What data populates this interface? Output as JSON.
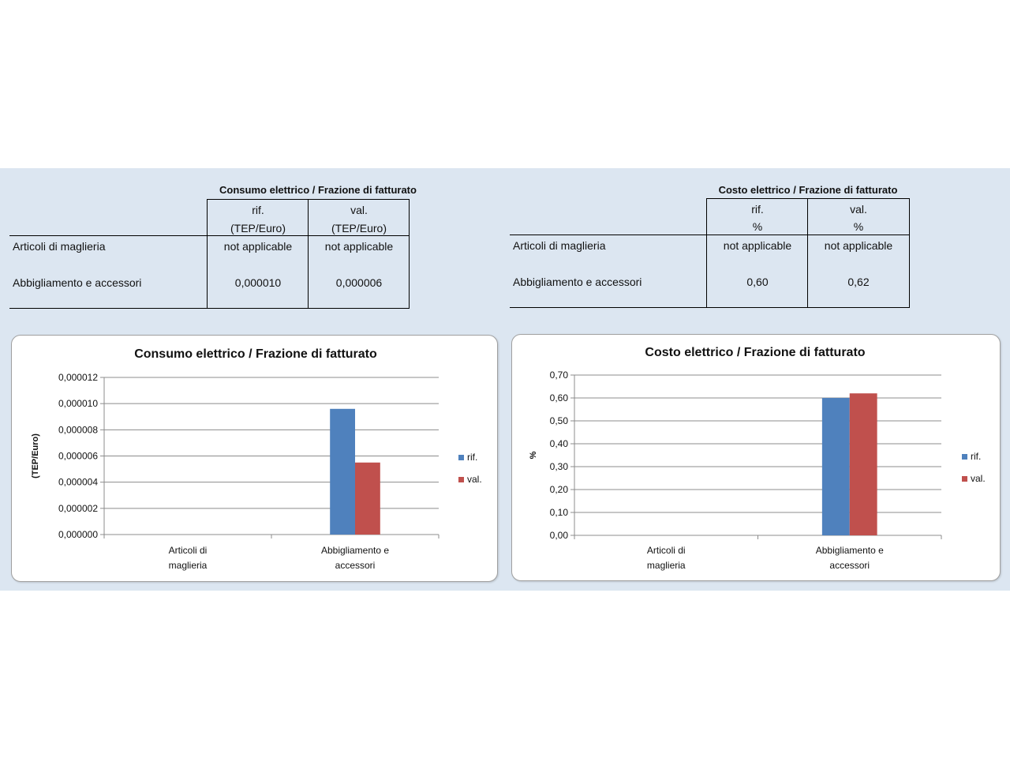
{
  "tables": [
    {
      "title": "Consumo elettrico / Frazione di fatturato",
      "col1_header": "rif.",
      "col1_unit": "(TEP/Euro)",
      "col2_header": "val.",
      "col2_unit": "(TEP/Euro)",
      "rows": [
        {
          "label": "Articoli di maglieria",
          "rif": "not applicable",
          "val": "not applicable"
        },
        {
          "label": "Abbigliamento e accessori",
          "rif": "0,000010",
          "val": "0,000006"
        }
      ]
    },
    {
      "title": "Costo elettrico / Frazione di fatturato",
      "col1_header": "rif.",
      "col1_unit": "%",
      "col2_header": "val.",
      "col2_unit": "%",
      "rows": [
        {
          "label": "Articoli di maglieria",
          "rif": "not applicable",
          "val": "not applicable"
        },
        {
          "label": "Abbigliamento e accessori",
          "rif": "0,60",
          "val": "0,62"
        }
      ]
    }
  ],
  "chart_data": [
    {
      "type": "bar",
      "title": "Consumo elettrico / Frazione di fatturato",
      "ylabel": "(TEP/Euro)",
      "xlabel": "",
      "categories": [
        "Articoli di maglieria",
        "Abbigliamento e accessori"
      ],
      "category_lines": [
        [
          "Articoli di",
          "maglieria"
        ],
        [
          "Abbigliamento e",
          "accessori"
        ]
      ],
      "series": [
        {
          "name": "rif.",
          "color": "#4f81bd",
          "values": [
            null,
            9.6e-06
          ]
        },
        {
          "name": "val.",
          "color": "#c0504d",
          "values": [
            null,
            5.5e-06
          ]
        }
      ],
      "ylim": [
        0,
        1.2e-05
      ],
      "yticks": [
        0,
        2e-06,
        4e-06,
        6e-06,
        8e-06,
        1e-05,
        1.2e-05
      ],
      "ytick_labels": [
        "0,000000",
        "0,000002",
        "0,000004",
        "0,000006",
        "0,000008",
        "0,000010",
        "0,000012"
      ],
      "grid": true,
      "legend_position": "right"
    },
    {
      "type": "bar",
      "title": "Costo elettrico / Frazione di fatturato",
      "ylabel": "%",
      "xlabel": "",
      "categories": [
        "Articoli di maglieria",
        "Abbigliamento e accessori"
      ],
      "category_lines": [
        [
          "Articoli di",
          "maglieria"
        ],
        [
          "Abbigliamento e",
          "accessori"
        ]
      ],
      "series": [
        {
          "name": "rif.",
          "color": "#4f81bd",
          "values": [
            null,
            0.6
          ]
        },
        {
          "name": "val.",
          "color": "#c0504d",
          "values": [
            null,
            0.62
          ]
        }
      ],
      "ylim": [
        0,
        0.7
      ],
      "yticks": [
        0,
        0.1,
        0.2,
        0.3,
        0.4,
        0.5,
        0.6,
        0.7
      ],
      "ytick_labels": [
        "0,00",
        "0,10",
        "0,20",
        "0,30",
        "0,40",
        "0,50",
        "0,60",
        "0,70"
      ],
      "grid": true,
      "legend_position": "right"
    }
  ]
}
